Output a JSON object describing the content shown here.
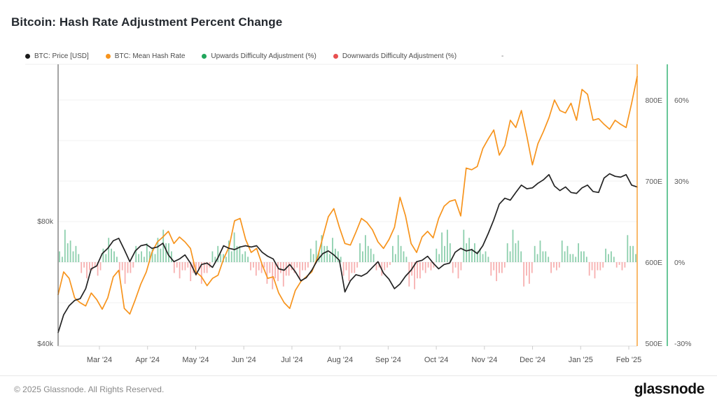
{
  "page": {
    "title": "Bitcoin: Hash Rate Adjustment Percent Change"
  },
  "legend": {
    "items": [
      {
        "label": "BTC: Price [USD]",
        "color": "#1a1a1a"
      },
      {
        "label": "BTC: Mean Hash Rate",
        "color": "#f7941d"
      },
      {
        "label": "Upwards Difficulty Adjustment (%)",
        "color": "#21a65c"
      },
      {
        "label": "Downwards Difficulty Adjustment (%)",
        "color": "#e85050"
      }
    ],
    "extra": "-"
  },
  "footer": {
    "copyright": "© 2025 Glassnode. All Rights Reserved.",
    "logo": "glassnode"
  },
  "chart_data": {
    "type": "mixed",
    "title": "Bitcoin: Hash Rate Adjustment Percent Change",
    "grid": true,
    "legend_position": "top",
    "x_axis": {
      "tick_labels": [
        "Mar '24",
        "Apr '24",
        "May '24",
        "Jun '24",
        "Jul '24",
        "Aug '24",
        "Sep '24",
        "Oct '24",
        "Nov '24",
        "Dec '24",
        "Jan '25",
        "Feb '25"
      ]
    },
    "y_axes": {
      "price": {
        "side": "left",
        "scale": "log",
        "tick_labels": [
          "$80k",
          "$40k"
        ],
        "tick_values": [
          80000,
          40000
        ],
        "color": "#555555"
      },
      "hash_rate": {
        "side": "right",
        "unit": "EH/s",
        "tick_labels": [
          "800E",
          "700E",
          "600E",
          "500E"
        ],
        "tick_values": [
          800,
          700,
          600,
          500
        ],
        "axis_line_color": "#f7941d",
        "range": [
          500,
          850
        ]
      },
      "pct": {
        "side": "far-right",
        "tick_labels": [
          "60%",
          "30%",
          "0%",
          "-30%"
        ],
        "tick_values": [
          60,
          30,
          0,
          -30
        ],
        "axis_line_color": "#43b97f",
        "range": [
          -33,
          63
        ]
      }
    },
    "series": [
      {
        "name": "BTC: Price [USD]",
        "type": "line",
        "axis": "price",
        "color": "#232323",
        "values": [
          42500,
          47000,
          49500,
          51000,
          51500,
          54500,
          61000,
          62000,
          66500,
          68500,
          71500,
          72500,
          68000,
          63500,
          67500,
          69500,
          70000,
          68500,
          69000,
          70500,
          66000,
          63500,
          64500,
          66000,
          63000,
          59000,
          62500,
          63000,
          61500,
          65000,
          69500,
          68500,
          68000,
          69000,
          69500,
          69000,
          69500,
          67000,
          65500,
          64500,
          61000,
          60500,
          62500,
          60000,
          57000,
          58000,
          60500,
          64000,
          66500,
          67500,
          66000,
          64000,
          53500,
          57000,
          59000,
          58500,
          59500,
          61500,
          63500,
          59500,
          57500,
          54500,
          56000,
          58500,
          60500,
          63500,
          64000,
          65500,
          63000,
          61000,
          62500,
          63000,
          67000,
          68500,
          67500,
          68000,
          66500,
          69500,
          74500,
          80500,
          88000,
          91000,
          90000,
          94000,
          98000,
          96000,
          96500,
          99000,
          101000,
          104000,
          97500,
          95000,
          97000,
          94000,
          93500,
          96500,
          98000,
          94500,
          94000,
          102000,
          104500,
          103000,
          102500,
          104000,
          98000,
          97000
        ]
      },
      {
        "name": "BTC: Mean Hash Rate",
        "type": "line",
        "axis": "hash_rate",
        "color": "#f7941d",
        "unit": "EH/s",
        "values": [
          560,
          588,
          580,
          556,
          550,
          546,
          562,
          554,
          542,
          556,
          582,
          590,
          543,
          536,
          554,
          573,
          588,
          612,
          625,
          631,
          638,
          623,
          631,
          625,
          617,
          588,
          582,
          571,
          580,
          584,
          604,
          619,
          651,
          654,
          628,
          612,
          617,
          597,
          580,
          582,
          562,
          550,
          543,
          565,
          576,
          582,
          588,
          605,
          631,
          656,
          666,
          643,
          623,
          621,
          637,
          654,
          649,
          640,
          625,
          617,
          628,
          643,
          680,
          657,
          623,
          612,
          631,
          638,
          630,
          654,
          669,
          675,
          677,
          657,
          716,
          714,
          718,
          740,
          752,
          763,
          732,
          744,
          775,
          766,
          787,
          755,
          720,
          746,
          761,
          778,
          800,
          787,
          784,
          796,
          775,
          813,
          807,
          775,
          777,
          770,
          764,
          775,
          770,
          766,
          796,
          829
        ]
      },
      {
        "name": "Difficulty Adjustment (%)",
        "type": "bar",
        "axis": "pct",
        "up_name": "Upwards Difficulty Adjustment (%)",
        "down_name": "Downwards Difficulty Adjustment (%)",
        "up_color": "#2fa86a",
        "down_color": "#ee4f4f",
        "values": [
          4,
          2,
          12,
          7,
          8,
          4,
          6,
          3,
          -4,
          -2,
          -6,
          -3,
          -3,
          -2,
          -5,
          -3,
          5,
          3,
          9,
          5,
          4,
          2,
          -5,
          -3,
          -8,
          -4,
          -4,
          -2,
          6,
          3,
          4,
          2,
          7,
          4,
          5,
          3,
          9,
          5,
          12,
          7,
          7,
          4,
          -4,
          -2,
          -6,
          -3,
          -3,
          -2,
          -7,
          -4,
          -5,
          -3,
          -8,
          -4,
          -4,
          -2,
          4,
          2,
          6,
          3,
          3,
          2,
          8,
          4,
          11,
          6,
          6,
          3,
          4,
          2,
          -3,
          -2,
          -5,
          -3,
          -4,
          -2,
          -8,
          -4,
          -10,
          -6,
          -7,
          -4,
          -9,
          -5,
          -5,
          -3,
          -4,
          -2,
          -6,
          -3,
          -3,
          -2,
          5,
          3,
          8,
          4,
          10,
          6,
          6,
          3,
          9,
          5,
          4,
          2,
          -5,
          -3,
          -7,
          -4,
          -4,
          -2,
          7,
          4,
          10,
          6,
          5,
          3,
          -3,
          -2,
          -5,
          -3,
          -2,
          -1,
          6,
          3,
          10,
          6,
          4,
          2,
          -9,
          -5,
          -10,
          -6,
          -6,
          -3,
          -4,
          -2,
          -3,
          -2,
          5,
          3,
          11,
          6,
          12,
          7,
          -4,
          -2,
          -6,
          -3,
          12,
          7,
          9,
          5,
          7,
          4,
          5,
          3,
          4,
          2,
          -5,
          -3,
          -7,
          -4,
          -4,
          -2,
          7,
          4,
          12,
          7,
          8,
          4,
          -9,
          -5,
          -8,
          -4,
          6,
          3,
          8,
          4,
          4,
          2,
          -4,
          -2,
          -3,
          -2,
          8,
          4,
          6,
          3,
          3,
          2,
          7,
          4,
          4,
          2,
          -5,
          -3,
          -6,
          -3,
          -3,
          -2,
          5,
          3,
          4,
          2,
          -2,
          -1,
          -3,
          -2,
          10,
          6,
          6,
          3
        ]
      }
    ]
  }
}
